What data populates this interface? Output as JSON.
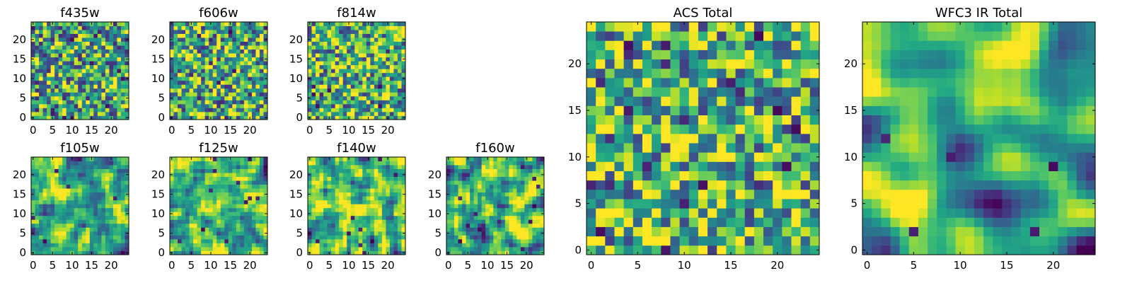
{
  "chart_data": [
    {
      "type": "heatmap",
      "title": "f435w",
      "rows": 25,
      "cols": 25,
      "colormap": "viridis",
      "x_ticks": [
        0,
        5,
        10,
        15,
        20
      ],
      "y_ticks": [
        0,
        5,
        10,
        15,
        20
      ],
      "xlim": [
        -0.5,
        24.5
      ],
      "ylim": [
        -0.5,
        24.5
      ],
      "seed": 11,
      "smooth": 0,
      "dark_fraction": 0.03,
      "bias": 0.6
    },
    {
      "type": "heatmap",
      "title": "f606w",
      "rows": 25,
      "cols": 25,
      "colormap": "viridis",
      "x_ticks": [
        0,
        5,
        10,
        15,
        20
      ],
      "y_ticks": [
        0,
        5,
        10,
        15,
        20
      ],
      "xlim": [
        -0.5,
        24.5
      ],
      "ylim": [
        -0.5,
        24.5
      ],
      "seed": 23,
      "smooth": 0,
      "dark_fraction": 0.02,
      "bias": 0.62
    },
    {
      "type": "heatmap",
      "title": "f814w",
      "rows": 25,
      "cols": 25,
      "colormap": "viridis",
      "x_ticks": [
        0,
        5,
        10,
        15,
        20
      ],
      "y_ticks": [
        0,
        5,
        10,
        15,
        20
      ],
      "xlim": [
        -0.5,
        24.5
      ],
      "ylim": [
        -0.5,
        24.5
      ],
      "seed": 37,
      "smooth": 0,
      "dark_fraction": 0.02,
      "bias": 0.64
    },
    {
      "type": "heatmap",
      "title": "f105w",
      "rows": 25,
      "cols": 25,
      "colormap": "viridis",
      "x_ticks": [
        0,
        5,
        10,
        15,
        20
      ],
      "y_ticks": [
        0,
        5,
        10,
        15,
        20
      ],
      "xlim": [
        -0.5,
        24.5
      ],
      "ylim": [
        -0.5,
        24.5
      ],
      "seed": 41,
      "smooth": 1,
      "dark_fraction": 0.02,
      "bias": 0.6
    },
    {
      "type": "heatmap",
      "title": "f125w",
      "rows": 25,
      "cols": 25,
      "colormap": "viridis",
      "x_ticks": [
        0,
        5,
        10,
        15,
        20
      ],
      "y_ticks": [
        0,
        5,
        10,
        15,
        20
      ],
      "xlim": [
        -0.5,
        24.5
      ],
      "ylim": [
        -0.5,
        24.5
      ],
      "seed": 53,
      "smooth": 1,
      "dark_fraction": 0.02,
      "bias": 0.66
    },
    {
      "type": "heatmap",
      "title": "f140w",
      "rows": 25,
      "cols": 25,
      "colormap": "viridis",
      "x_ticks": [
        0,
        5,
        10,
        15,
        20
      ],
      "y_ticks": [
        0,
        5,
        10,
        15,
        20
      ],
      "xlim": [
        -0.5,
        24.5
      ],
      "ylim": [
        -0.5,
        24.5
      ],
      "seed": 67,
      "smooth": 1,
      "dark_fraction": 0.02,
      "bias": 0.64
    },
    {
      "type": "heatmap",
      "title": "f160w",
      "rows": 25,
      "cols": 25,
      "colormap": "viridis",
      "x_ticks": [
        0,
        5,
        10,
        15,
        20
      ],
      "y_ticks": [
        0,
        5,
        10,
        15,
        20
      ],
      "xlim": [
        -0.5,
        24.5
      ],
      "ylim": [
        -0.5,
        24.5
      ],
      "seed": 79,
      "smooth": 1,
      "dark_fraction": 0.02,
      "bias": 0.66
    },
    {
      "type": "heatmap",
      "title": "ACS Total",
      "rows": 25,
      "cols": 25,
      "colormap": "viridis",
      "x_ticks": [
        0,
        5,
        10,
        15,
        20
      ],
      "y_ticks": [
        0,
        5,
        10,
        15,
        20
      ],
      "xlim": [
        -0.5,
        24.5
      ],
      "ylim": [
        -0.5,
        24.5
      ],
      "seed": 97,
      "smooth": 0,
      "dark_fraction": 0.03,
      "bias": 0.66
    },
    {
      "type": "heatmap",
      "title": "WFC3 IR Total",
      "rows": 25,
      "cols": 25,
      "colormap": "viridis",
      "x_ticks": [
        0,
        5,
        10,
        15,
        20
      ],
      "y_ticks": [
        0,
        5,
        10,
        15,
        20
      ],
      "xlim": [
        -0.5,
        24.5
      ],
      "ylim": [
        -0.5,
        24.5
      ],
      "seed": 131,
      "smooth": 3,
      "dark_fraction": 0.02,
      "bias": 0.55
    }
  ]
}
